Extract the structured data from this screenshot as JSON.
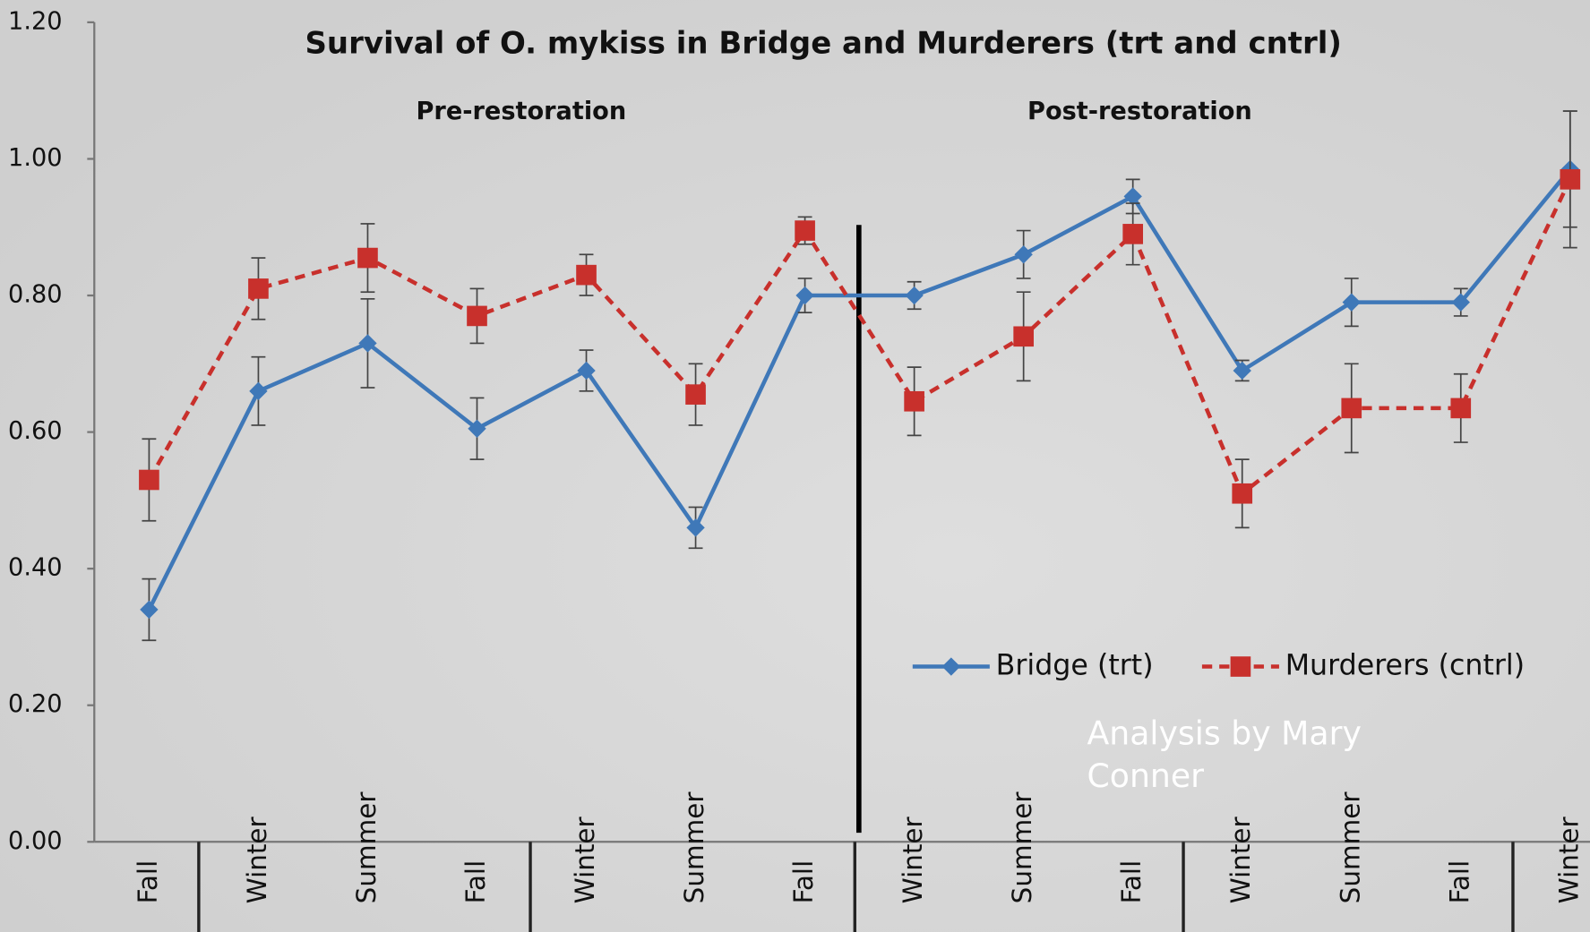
{
  "chart_data": {
    "type": "line",
    "title": "Survival of O. mykiss in Bridge and Murderers (trt and cntrl)",
    "section_labels": [
      "Pre-restoration",
      "Post-restoration"
    ],
    "annotation": "Analysis by Mary Conner",
    "categories": [
      "Fall",
      "Winter",
      "Summer",
      "Fall",
      "Winter",
      "Summer",
      "Fall",
      "Winter",
      "Summer",
      "Fall",
      "Winter",
      "Summer",
      "Fall",
      "Winter"
    ],
    "ylim": [
      0,
      1.2
    ],
    "yticks": [
      {
        "value": 0,
        "label": "0.00"
      },
      {
        "value": 0.2,
        "label": "0.20"
      },
      {
        "value": 0.4,
        "label": "0.40"
      },
      {
        "value": 0.6,
        "label": "0.60"
      },
      {
        "value": 0.8,
        "label": "0.80"
      },
      {
        "value": 1.0,
        "label": "1.00"
      },
      {
        "value": 1.2,
        "label": "1.20"
      }
    ],
    "legend": "lower right",
    "series": [
      {
        "name": "Bridge (trt)",
        "color": "#3f78b8",
        "marker": "diamond",
        "dashed": false,
        "values": [
          0.34,
          0.66,
          0.73,
          0.605,
          0.69,
          0.46,
          0.8,
          0.8,
          0.86,
          0.945,
          0.69,
          0.79,
          0.79,
          0.985
        ],
        "errors": [
          0.045,
          0.05,
          0.065,
          0.045,
          0.03,
          0.03,
          0.025,
          0.02,
          0.035,
          0.025,
          0.015,
          0.035,
          0.02,
          0.085
        ]
      },
      {
        "name": "Murderers (cntrl)",
        "color": "#c8302c",
        "marker": "square",
        "dashed": true,
        "values": [
          0.53,
          0.81,
          0.855,
          0.77,
          0.83,
          0.655,
          0.895,
          0.645,
          0.74,
          0.89,
          0.51,
          0.635,
          0.635,
          0.97
        ],
        "errors": [
          0.06,
          0.045,
          0.05,
          0.04,
          0.03,
          0.045,
          0.02,
          0.05,
          0.065,
          0.045,
          0.05,
          0.065,
          0.05,
          0.1
        ]
      }
    ]
  }
}
